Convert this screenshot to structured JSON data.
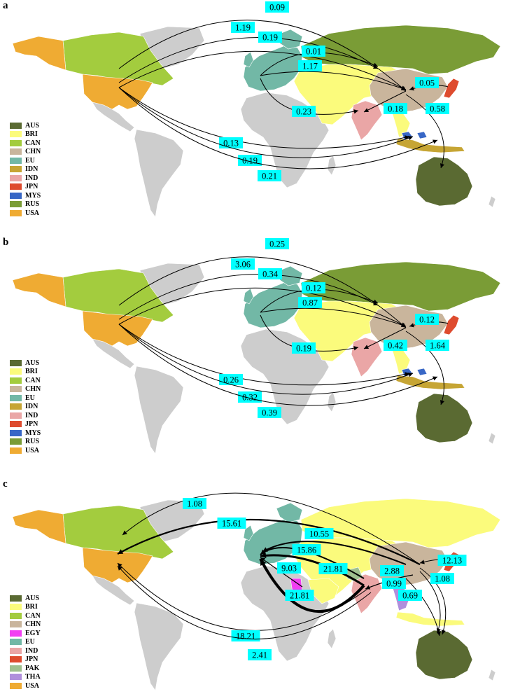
{
  "panels": [
    {
      "label": "a",
      "legend": [
        {
          "code": "AUS",
          "color": "#5a6a32"
        },
        {
          "code": "BRI",
          "color": "#fbfb7c"
        },
        {
          "code": "CAN",
          "color": "#a3cc3e"
        },
        {
          "code": "CHN",
          "color": "#c9b59c"
        },
        {
          "code": "EU",
          "color": "#72b8a6"
        },
        {
          "code": "IDN",
          "color": "#c6a534"
        },
        {
          "code": "IND",
          "color": "#eaa6a6"
        },
        {
          "code": "JPN",
          "color": "#de4b2e"
        },
        {
          "code": "MYS",
          "color": "#3867c6"
        },
        {
          "code": "RUS",
          "color": "#7a9c36"
        },
        {
          "code": "USA",
          "color": "#efab33"
        }
      ],
      "flows": [
        "0.09",
        "1.19",
        "0.19",
        "0.01",
        "1.17",
        "0.05",
        "0.23",
        "0.18",
        "0.58",
        "0.13",
        "0.19",
        "0.21"
      ]
    },
    {
      "label": "b",
      "legend": [
        {
          "code": "AUS",
          "color": "#5a6a32"
        },
        {
          "code": "BRI",
          "color": "#fbfb7c"
        },
        {
          "code": "CAN",
          "color": "#a3cc3e"
        },
        {
          "code": "CHN",
          "color": "#c9b59c"
        },
        {
          "code": "EU",
          "color": "#72b8a6"
        },
        {
          "code": "IDN",
          "color": "#c6a534"
        },
        {
          "code": "IND",
          "color": "#eaa6a6"
        },
        {
          "code": "JPN",
          "color": "#de4b2e"
        },
        {
          "code": "MYS",
          "color": "#3867c6"
        },
        {
          "code": "RUS",
          "color": "#7a9c36"
        },
        {
          "code": "USA",
          "color": "#efab33"
        }
      ],
      "flows": [
        "0.25",
        "3.06",
        "0.34",
        "0.12",
        "0.87",
        "0.12",
        "0.19",
        "0.42",
        "1.64",
        "0.26",
        "0.32",
        "0.39"
      ]
    },
    {
      "label": "c",
      "legend": [
        {
          "code": "AUS",
          "color": "#5a6a32"
        },
        {
          "code": "BRI",
          "color": "#fbfb7c"
        },
        {
          "code": "CAN",
          "color": "#a3cc3e"
        },
        {
          "code": "CHN",
          "color": "#c9b59c"
        },
        {
          "code": "EGY",
          "color": "#f23ff2"
        },
        {
          "code": "EU",
          "color": "#72b8a6"
        },
        {
          "code": "IND",
          "color": "#eaa6a6"
        },
        {
          "code": "JPN",
          "color": "#de4b2e"
        },
        {
          "code": "PAK",
          "color": "#9fc08f"
        },
        {
          "code": "THA",
          "color": "#b08fdc"
        },
        {
          "code": "USA",
          "color": "#efab33"
        }
      ],
      "flows": [
        "1.08",
        "15.61",
        "10.55",
        "15.86",
        "9.03",
        "21.81",
        "2.88",
        "12.13",
        "0.99",
        "1.08",
        "0.69",
        "21.81",
        "18.21",
        "2.41"
      ]
    }
  ],
  "colors": {
    "land": "#cdcdcd",
    "label_bg": "#00ffff",
    "arrow": "#000000"
  }
}
